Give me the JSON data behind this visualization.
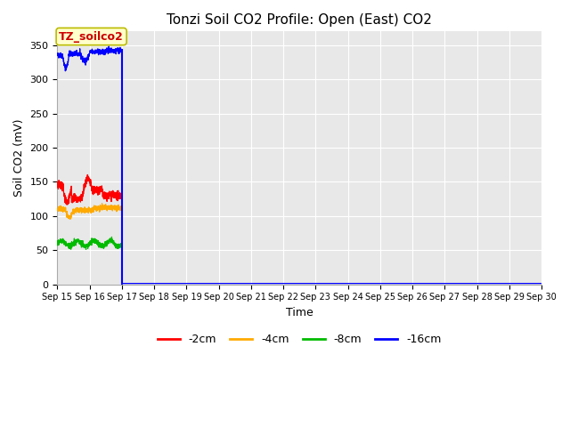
{
  "title": "Tonzi Soil CO2 Profile: Open (East) CO2",
  "xlabel": "Time",
  "ylabel": "Soil CO2 (mV)",
  "ylim": [
    0,
    370
  ],
  "yticks": [
    0,
    50,
    100,
    150,
    200,
    250,
    300,
    350
  ],
  "fig_bg_color": "#ffffff",
  "plot_bg_color": "#e8e8e8",
  "grid_color": "#ffffff",
  "legend_label": "TZ_soilco2",
  "legend_box_color": "#ffffcc",
  "legend_box_edge": "#bbbb00",
  "series_colors": {
    "-2cm": "#ff0000",
    "-4cm": "#ffaa00",
    "-8cm": "#00bb00",
    "-16cm": "#0000ff"
  },
  "x_tick_labels": [
    "Sep 15",
    "Sep 16",
    "Sep 17",
    "Sep 18",
    "Sep 19",
    "Sep 20",
    "Sep 21",
    "Sep 22",
    "Sep 23",
    "Sep 24",
    "Sep 25",
    "Sep 26",
    "Sep 27",
    "Sep 28",
    "Sep 29",
    "Sep 30"
  ],
  "data_cutoff_day": 17.0,
  "seed": 42
}
